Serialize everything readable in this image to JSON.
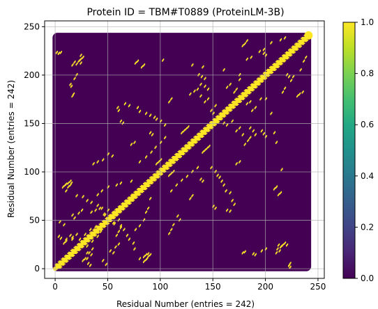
{
  "chart_data": {
    "type": "heatmap",
    "title": "Protein ID = TBM#T0889 (ProteinLM-3B)",
    "xlabel": "Residual Number (entries = 242)",
    "ylabel": "Residual Number (entries = 242)",
    "xlim": [
      -10,
      256
    ],
    "ylim": [
      -10,
      256
    ],
    "xticks": [
      0,
      50,
      100,
      150,
      200,
      250
    ],
    "yticks": [
      0,
      50,
      100,
      150,
      200,
      250
    ],
    "grid": true,
    "n_residues": 242,
    "background_value": 0.0,
    "colorbar": {
      "colormap": "viridis",
      "range": [
        0.0,
        1.0
      ],
      "ticks": [
        0.0,
        0.2,
        0.4,
        0.6,
        0.8,
        1.0
      ],
      "tick_labels": [
        "0.0",
        "0.2",
        "0.4",
        "0.6",
        "0.8",
        "1.0"
      ]
    },
    "contact_value": 1.0,
    "contact_color": "#fde725",
    "background_color": "#440154",
    "diagonal_band": {
      "from": 0,
      "to": 241,
      "width": 4
    },
    "contacts": [
      [
        1,
        223
      ],
      [
        3,
        222
      ],
      [
        16,
        210
      ],
      [
        18,
        213
      ],
      [
        20,
        211
      ],
      [
        23,
        215
      ],
      [
        24,
        212
      ],
      [
        14,
        190
      ],
      [
        15,
        188
      ],
      [
        62,
        152
      ],
      [
        64,
        150
      ],
      [
        59,
        166
      ],
      [
        60,
        163
      ],
      [
        72,
        128
      ],
      [
        75,
        130
      ],
      [
        90,
        140
      ],
      [
        92,
        138
      ],
      [
        108,
        172
      ],
      [
        110,
        175
      ],
      [
        128,
        180
      ],
      [
        132,
        183
      ],
      [
        135,
        185
      ],
      [
        138,
        178
      ],
      [
        142,
        172
      ],
      [
        145,
        175
      ],
      [
        148,
        163
      ],
      [
        150,
        160
      ],
      [
        152,
        168
      ],
      [
        163,
        187
      ],
      [
        166,
        190
      ],
      [
        170,
        182
      ],
      [
        172,
        185
      ],
      [
        175,
        195
      ],
      [
        178,
        230
      ],
      [
        180,
        232
      ],
      [
        182,
        235
      ],
      [
        198,
        222
      ],
      [
        200,
        220
      ],
      [
        200,
        175
      ],
      [
        205,
        160
      ],
      [
        208,
        140
      ],
      [
        210,
        130
      ],
      [
        215,
        102
      ],
      [
        196,
        142
      ],
      [
        198,
        139
      ],
      [
        200,
        136
      ],
      [
        212,
        76
      ],
      [
        214,
        78
      ],
      [
        208,
        82
      ],
      [
        210,
        84
      ],
      [
        178,
        16
      ],
      [
        180,
        17
      ],
      [
        216,
        24
      ],
      [
        214,
        22
      ],
      [
        218,
        26
      ],
      [
        220,
        24
      ],
      [
        222,
        3
      ],
      [
        223,
        5
      ],
      [
        196,
        18
      ],
      [
        200,
        20
      ],
      [
        110,
        80
      ],
      [
        115,
        86
      ],
      [
        120,
        91
      ],
      [
        125,
        95
      ],
      [
        130,
        100
      ],
      [
        135,
        104
      ],
      [
        108,
        36
      ],
      [
        110,
        40
      ],
      [
        112,
        45
      ],
      [
        118,
        50
      ],
      [
        116,
        54
      ],
      [
        50,
        60
      ],
      [
        55,
        58
      ],
      [
        62,
        60
      ],
      [
        65,
        64
      ],
      [
        70,
        70
      ],
      [
        72,
        74
      ],
      [
        90,
        72
      ],
      [
        88,
        62
      ],
      [
        86,
        58
      ],
      [
        84,
        50
      ],
      [
        80,
        44
      ],
      [
        76,
        40
      ],
      [
        7,
        84
      ],
      [
        9,
        86
      ],
      [
        10,
        87
      ],
      [
        12,
        88
      ],
      [
        14,
        90
      ],
      [
        30,
        23
      ],
      [
        35,
        28
      ],
      [
        40,
        33
      ],
      [
        43,
        38
      ],
      [
        30,
        16
      ],
      [
        28,
        10
      ],
      [
        26,
        8
      ],
      [
        16,
        32
      ],
      [
        14,
        34
      ],
      [
        20,
        35
      ],
      [
        10,
        30
      ],
      [
        5,
        31
      ],
      [
        3,
        33
      ],
      [
        34,
        58
      ],
      [
        38,
        60
      ],
      [
        42,
        62
      ],
      [
        46,
        56
      ],
      [
        50,
        52
      ],
      [
        55,
        47
      ],
      [
        62,
        44
      ],
      [
        65,
        40
      ],
      [
        68,
        34
      ],
      [
        70,
        30
      ],
      [
        74,
        26
      ],
      [
        75,
        20
      ],
      [
        80,
        10
      ],
      [
        84,
        12
      ],
      [
        86,
        14
      ],
      [
        88,
        15
      ],
      [
        52,
        18
      ],
      [
        55,
        16
      ],
      [
        57,
        22
      ],
      [
        60,
        25
      ],
      [
        48,
        4
      ],
      [
        45,
        8
      ],
      [
        96,
        108
      ],
      [
        98,
        110
      ],
      [
        100,
        112
      ],
      [
        140,
        120
      ],
      [
        142,
        122
      ],
      [
        144,
        124
      ],
      [
        146,
        126
      ],
      [
        148,
        104
      ],
      [
        152,
        100
      ],
      [
        154,
        96
      ],
      [
        156,
        94
      ],
      [
        158,
        90
      ],
      [
        160,
        86
      ],
      [
        162,
        80
      ],
      [
        166,
        78
      ],
      [
        168,
        70
      ],
      [
        170,
        66
      ],
      [
        185,
        145
      ],
      [
        188,
        142
      ],
      [
        190,
        138
      ],
      [
        236,
        214
      ],
      [
        238,
        218
      ],
      [
        233,
        205
      ],
      [
        226,
        198
      ],
      [
        224,
        194
      ],
      [
        218,
        186
      ],
      [
        216,
        182
      ]
    ]
  }
}
